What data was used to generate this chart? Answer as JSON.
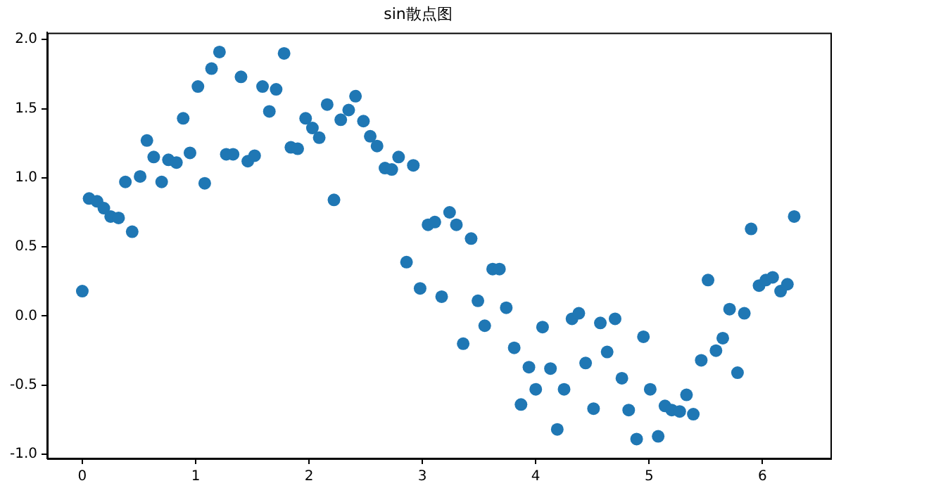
{
  "chart_data": {
    "type": "scatter",
    "title": "sin散点图",
    "color": "#1f77b4",
    "marker": "circle",
    "grid": false,
    "legend": false,
    "xlim": [
      -0.31,
      6.6
    ],
    "xticks": [
      0,
      1,
      2,
      3,
      4,
      5,
      6
    ],
    "ylim": [
      -1.03,
      2.05
    ],
    "yticks": [
      {
        "value": -1,
        "label": "-1.0"
      },
      -0.5,
      {
        "value": 0,
        "label": "0.0"
      },
      0.5,
      {
        "value": 1,
        "label": "1.0"
      },
      1.5,
      {
        "value": 2,
        "label": "2.0"
      }
    ],
    "x": [
      0,
      0.06,
      0.13,
      0.19,
      0.25,
      0.32,
      0.38,
      0.44,
      0.51,
      0.57,
      0.63,
      0.7,
      0.76,
      0.83,
      0.89,
      0.95,
      1.02,
      1.08,
      1.14,
      1.21,
      1.27,
      1.33,
      1.4,
      1.46,
      1.52,
      1.59,
      1.65,
      1.71,
      1.78,
      1.84,
      1.9,
      1.97,
      2.03,
      2.09,
      2.16,
      2.22,
      2.28,
      2.35,
      2.41,
      2.48,
      2.54,
      2.6,
      2.67,
      2.73,
      2.79,
      2.86,
      2.92,
      2.98,
      3.05,
      3.11,
      3.17,
      3.24,
      3.3,
      3.36,
      3.43,
      3.49,
      3.55,
      3.62,
      3.68,
      3.74,
      3.81,
      3.87,
      3.94,
      4.0,
      4.06,
      4.13,
      4.19,
      4.25,
      4.32,
      4.38,
      4.44,
      4.51,
      4.57,
      4.63,
      4.7,
      4.76,
      4.82,
      4.89,
      4.95,
      5.01,
      5.08,
      5.14,
      5.2,
      5.27,
      5.33,
      5.39,
      5.46,
      5.52,
      5.59,
      5.65,
      5.71,
      5.78,
      5.84,
      5.9,
      5.97,
      6.03,
      6.09,
      6.16,
      6.22,
      6.28
    ],
    "values": [
      0.18,
      0.85,
      0.83,
      0.78,
      0.72,
      0.71,
      0.97,
      0.61,
      1.01,
      1.27,
      1.15,
      0.97,
      1.13,
      1.11,
      1.43,
      1.18,
      1.66,
      0.96,
      1.79,
      1.91,
      1.17,
      1.17,
      1.73,
      1.12,
      1.16,
      1.66,
      1.48,
      1.64,
      1.9,
      1.22,
      1.21,
      1.43,
      1.36,
      1.29,
      1.53,
      0.84,
      1.42,
      1.49,
      1.59,
      1.41,
      1.3,
      1.23,
      1.07,
      1.06,
      1.15,
      0.39,
      1.09,
      0.2,
      0.66,
      0.68,
      0.14,
      0.75,
      0.66,
      -0.2,
      0.56,
      0.11,
      -0.07,
      0.34,
      0.34,
      0.06,
      -0.23,
      -0.64,
      -0.37,
      -0.53,
      -0.08,
      -0.38,
      -0.82,
      -0.53,
      -0.02,
      0.02,
      -0.34,
      -0.67,
      -0.05,
      -0.26,
      -0.02,
      -0.45,
      -0.68,
      -0.89,
      -0.15,
      -0.53,
      -0.87,
      -0.65,
      -0.68,
      -0.69,
      -0.57,
      -0.71,
      -0.32,
      0.26,
      -0.25,
      -0.16,
      0.05,
      -0.41,
      0.02,
      0.63,
      0.22,
      0.26,
      0.28,
      0.18,
      0.23,
      0.72
    ]
  }
}
